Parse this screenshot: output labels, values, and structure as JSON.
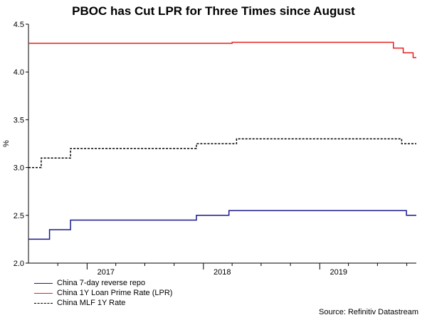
{
  "chart_data": {
    "type": "line",
    "title": "PBOC has Cut LPR for Three Times since August",
    "ylabel": "%",
    "xlabel": "",
    "ylim": [
      2.0,
      4.5
    ],
    "yticks": [
      "2.0",
      "2.5",
      "3.0",
      "3.5",
      "4.0",
      "4.5"
    ],
    "xlim": [
      "2016-07-01",
      "2019-10-31"
    ],
    "xticks": [
      {
        "date": "2017-03-01",
        "label": "2017"
      },
      {
        "date": "2018-03-01",
        "label": "2018"
      },
      {
        "date": "2019-03-01",
        "label": "2019"
      }
    ],
    "grid": false,
    "legend": "bottom-left",
    "series": [
      {
        "name": "China 7-day reverse repo",
        "color": "#1a1a8c",
        "dash": false,
        "points": [
          [
            "2016-07-01",
            2.25
          ],
          [
            "2016-09-05",
            2.25
          ],
          [
            "2016-09-05",
            2.35
          ],
          [
            "2016-11-10",
            2.35
          ],
          [
            "2016-11-10",
            2.45
          ],
          [
            "2017-12-10",
            2.45
          ],
          [
            "2017-12-10",
            2.5
          ],
          [
            "2018-03-22",
            2.5
          ],
          [
            "2018-03-22",
            2.55
          ],
          [
            "2019-09-30",
            2.55
          ],
          [
            "2019-09-30",
            2.5
          ],
          [
            "2019-10-31",
            2.5
          ]
        ]
      },
      {
        "name": "China 1Y Loan Prime Rate (LPR)",
        "color": "#e8201f",
        "dash": false,
        "points": [
          [
            "2016-07-01",
            4.3
          ],
          [
            "2018-04-01",
            4.3
          ],
          [
            "2018-04-01",
            4.31
          ],
          [
            "2019-08-20",
            4.31
          ],
          [
            "2019-08-20",
            4.25
          ],
          [
            "2019-09-20",
            4.25
          ],
          [
            "2019-09-20",
            4.2
          ],
          [
            "2019-10-21",
            4.2
          ],
          [
            "2019-10-21",
            4.15
          ],
          [
            "2019-10-31",
            4.15
          ]
        ]
      },
      {
        "name": "China MLF 1Y Rate",
        "color": "#000000",
        "dash": true,
        "points": [
          [
            "2016-07-01",
            3.0
          ],
          [
            "2016-08-10",
            3.0
          ],
          [
            "2016-08-10",
            3.1
          ],
          [
            "2016-11-10",
            3.1
          ],
          [
            "2016-11-10",
            3.2
          ],
          [
            "2017-12-10",
            3.2
          ],
          [
            "2017-12-10",
            3.25
          ],
          [
            "2018-04-15",
            3.25
          ],
          [
            "2018-04-15",
            3.3
          ],
          [
            "2019-09-15",
            3.3
          ],
          [
            "2019-09-15",
            3.25
          ],
          [
            "2019-10-31",
            3.25
          ]
        ]
      }
    ]
  },
  "source": "Source: Refinitiv Datastream"
}
